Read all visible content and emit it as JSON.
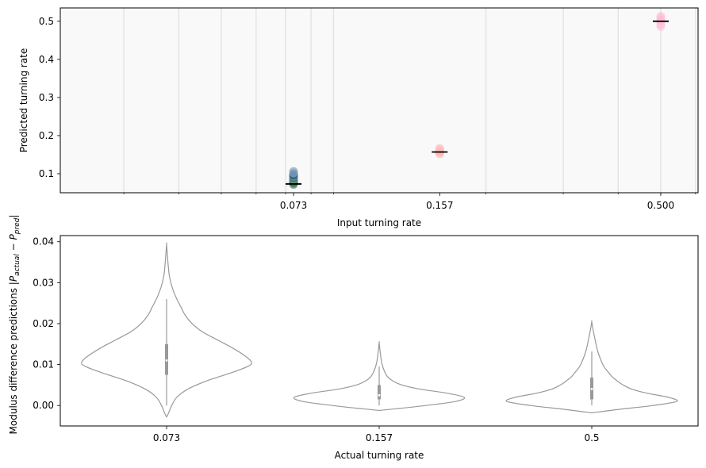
{
  "chart_data": [
    {
      "type": "scatter",
      "xlabel": "Input turning rate",
      "ylabel": "Predicted turning rate",
      "x_scale": "log",
      "xlim": [
        0.0215,
        0.608
      ],
      "ylim": [
        0.05,
        0.535
      ],
      "x_ticks": [
        0.073,
        0.157,
        0.5
      ],
      "x_tick_labels": [
        "0.073",
        "0.157",
        "0.500"
      ],
      "y_ticks": [
        0.1,
        0.2,
        0.3,
        0.4,
        0.5
      ],
      "y_tick_labels": [
        "0.1",
        "0.2",
        "0.3",
        "0.4",
        "0.5"
      ],
      "grid": "vertical",
      "series": [
        {
          "x": 0.073,
          "mean": 0.073,
          "points": [
            0.072,
            0.075,
            0.078,
            0.08,
            0.082,
            0.084,
            0.086,
            0.088,
            0.09,
            0.092,
            0.094,
            0.096,
            0.099,
            0.102,
            0.106
          ],
          "colors": [
            "#2d6a4f",
            "#3a7d44",
            "#1b4965",
            "#4a7fa0",
            "#5b8a3c",
            "#2e5e73",
            "#6f9f4f",
            "#7da7c4",
            "#193f5c",
            "#4f8f6f",
            "#8fb0c9",
            "#0f3057",
            "#3b6e8f",
            "#9ab8d0",
            "#6c8fb0"
          ]
        },
        {
          "x": 0.157,
          "mean": 0.157,
          "points": [
            0.152,
            0.155,
            0.158,
            0.161,
            0.164,
            0.167
          ],
          "colors": [
            "#ffb3b3",
            "#ffc0c0",
            "#ffa8a8",
            "#ffbcbc",
            "#ffb0b0",
            "#ffc4c4"
          ]
        },
        {
          "x": 0.5,
          "mean": 0.5,
          "points": [
            0.486,
            0.492,
            0.498,
            0.503,
            0.508,
            0.513
          ],
          "colors": [
            "#ffc0d9",
            "#ffb8d4",
            "#ffc6dd",
            "#ffbad6",
            "#ffc3db",
            "#ffb5d2"
          ]
        }
      ]
    },
    {
      "type": "violin",
      "xlabel": "Actual turning rate",
      "ylabel": "Modulus difference predictions |P_actual − P_pred|",
      "ylabel_parts": {
        "prefix": "Modulus difference predictions |",
        "p1": "P",
        "s1": "actual",
        "minus": " − ",
        "p2": "P",
        "s2": "pred",
        "suffix": "|"
      },
      "categories": [
        "0.073",
        "0.157",
        "0.5"
      ],
      "ylim": [
        -0.005,
        0.0415
      ],
      "y_ticks": [
        0.0,
        0.01,
        0.02,
        0.03,
        0.04
      ],
      "y_tick_labels": [
        "0.00",
        "0.01",
        "0.02",
        "0.03",
        "0.04"
      ],
      "color": "#999999",
      "violins": [
        {
          "profile": [
            [
              -0.0028,
              0.0
            ],
            [
              -0.002,
              0.02
            ],
            [
              0.0,
              0.06
            ],
            [
              0.002,
              0.12
            ],
            [
              0.004,
              0.25
            ],
            [
              0.006,
              0.47
            ],
            [
              0.008,
              0.76
            ],
            [
              0.0095,
              0.95
            ],
            [
              0.0105,
              1.0
            ],
            [
              0.012,
              0.93
            ],
            [
              0.014,
              0.78
            ],
            [
              0.016,
              0.6
            ],
            [
              0.018,
              0.42
            ],
            [
              0.02,
              0.3
            ],
            [
              0.022,
              0.22
            ],
            [
              0.024,
              0.17
            ],
            [
              0.026,
              0.12
            ],
            [
              0.028,
              0.08
            ],
            [
              0.03,
              0.05
            ],
            [
              0.032,
              0.03
            ],
            [
              0.034,
              0.02
            ],
            [
              0.036,
              0.012
            ],
            [
              0.0393,
              0.0
            ]
          ],
          "q1": 0.0075,
          "median": 0.011,
          "q3": 0.015,
          "whisker_low": 0.0,
          "whisker_high": 0.026
        },
        {
          "profile": [
            [
              -0.0012,
              0.0
            ],
            [
              -0.0008,
              0.2
            ],
            [
              0.0,
              0.55
            ],
            [
              0.001,
              0.9
            ],
            [
              0.002,
              1.0
            ],
            [
              0.003,
              0.8
            ],
            [
              0.004,
              0.48
            ],
            [
              0.005,
              0.27
            ],
            [
              0.006,
              0.16
            ],
            [
              0.007,
              0.1
            ],
            [
              0.008,
              0.07
            ],
            [
              0.009,
              0.05
            ],
            [
              0.01,
              0.035
            ],
            [
              0.011,
              0.025
            ],
            [
              0.012,
              0.018
            ],
            [
              0.013,
              0.012
            ],
            [
              0.0153,
              0.0
            ]
          ],
          "q1": 0.0015,
          "median": 0.0025,
          "q3": 0.005,
          "whisker_low": 0.0,
          "whisker_high": 0.0095
        },
        {
          "profile": [
            [
              -0.0018,
              0.0
            ],
            [
              -0.001,
              0.3
            ],
            [
              0.0,
              0.72
            ],
            [
              0.001,
              1.0
            ],
            [
              0.002,
              0.9
            ],
            [
              0.003,
              0.65
            ],
            [
              0.004,
              0.47
            ],
            [
              0.005,
              0.37
            ],
            [
              0.006,
              0.3
            ],
            [
              0.007,
              0.24
            ],
            [
              0.008,
              0.2
            ],
            [
              0.009,
              0.16
            ],
            [
              0.01,
              0.13
            ],
            [
              0.012,
              0.09
            ],
            [
              0.014,
              0.06
            ],
            [
              0.016,
              0.04
            ],
            [
              0.018,
              0.02
            ],
            [
              0.0204,
              0.0
            ]
          ],
          "q1": 0.0015,
          "median": 0.004,
          "q3": 0.0068,
          "whisker_low": 0.0,
          "whisker_high": 0.0132
        }
      ]
    }
  ]
}
